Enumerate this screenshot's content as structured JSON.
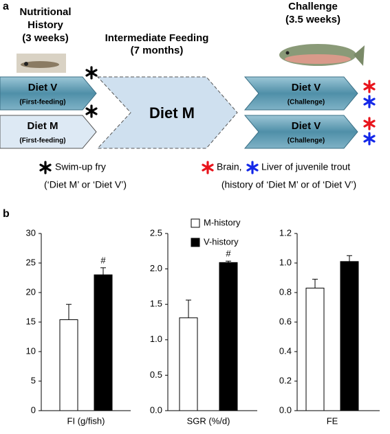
{
  "panel_labels": [
    "a",
    "b"
  ],
  "diagram": {
    "history": {
      "title": [
        "Nutritional",
        "History"
      ],
      "duration": "(3 weeks)"
    },
    "intermediate": {
      "title": "Intermediate Feeding",
      "duration": "(7 months)"
    },
    "challenge": {
      "title": "Challenge",
      "duration": "(3.5 weeks)"
    },
    "boxes": [
      {
        "label": "Diet V",
        "sub": "(First-feeding)"
      },
      {
        "label": "Diet M",
        "sub": "(First-feeding)"
      },
      {
        "label": "Diet M"
      },
      {
        "label": "Diet V",
        "sub": "(Challenge)"
      },
      {
        "label": "Diet V",
        "sub": "(Challenge)"
      }
    ],
    "legend": {
      "fry": "Swim-up fry",
      "fry_note": "(‘Diet M’ or ‘Diet V’)",
      "brain": "Brain,",
      "liver": "Liver of juvenile trout",
      "tissue_note": "(history of ‘Diet M’ or of ‘Diet V’)"
    }
  },
  "chart_data": [
    {
      "type": "bar",
      "categories": [
        "FI (g/fish)"
      ],
      "ylim": [
        0,
        30
      ],
      "yticks": [
        0,
        5,
        10,
        15,
        20,
        25,
        30
      ],
      "series": [
        {
          "color": "#ffffff",
          "values": [
            15.4
          ],
          "errors": [
            2.6
          ]
        },
        {
          "color": "#000000",
          "values": [
            23
          ],
          "errors": [
            1.2
          ],
          "annotations": [
            "#"
          ]
        }
      ]
    },
    {
      "type": "bar",
      "categories": [
        "SGR (%/d)"
      ],
      "ylim": [
        0,
        2.5
      ],
      "legend": "top-left",
      "yticks": [
        {
          "value": 0,
          "label": "0.0"
        },
        {
          "value": 0.5,
          "label": "0.5"
        },
        {
          "value": 1,
          "label": "1.0"
        },
        {
          "value": 1.5,
          "label": "1.5"
        },
        {
          "value": 2,
          "label": "2.0"
        },
        {
          "value": 2.5,
          "label": "2.5"
        }
      ],
      "series": [
        {
          "name": "M-history",
          "color": "#ffffff",
          "values": [
            1.31
          ],
          "errors": [
            0.25
          ]
        },
        {
          "name": "V-history",
          "color": "#000000",
          "values": [
            2.09
          ],
          "errors": [
            0.02
          ],
          "annotations": [
            "#"
          ]
        }
      ]
    },
    {
      "type": "bar",
      "categories": [
        "FE"
      ],
      "ylim": [
        0,
        1.2
      ],
      "yticks": [
        {
          "value": 0,
          "label": "0.0"
        },
        {
          "value": 0.2,
          "label": "0.2"
        },
        {
          "value": 0.4,
          "label": "0.4"
        },
        {
          "value": 0.6,
          "label": "0.6"
        },
        {
          "value": 0.8,
          "label": "0.8"
        },
        {
          "value": 1,
          "label": "1.0"
        },
        {
          "value": 1.2,
          "label": "1.2"
        }
      ],
      "series": [
        {
          "color": "#ffffff",
          "values": [
            0.83
          ],
          "errors": [
            0.06
          ]
        },
        {
          "color": "#000000",
          "values": [
            1.01
          ],
          "errors": [
            0.04
          ]
        }
      ]
    }
  ]
}
